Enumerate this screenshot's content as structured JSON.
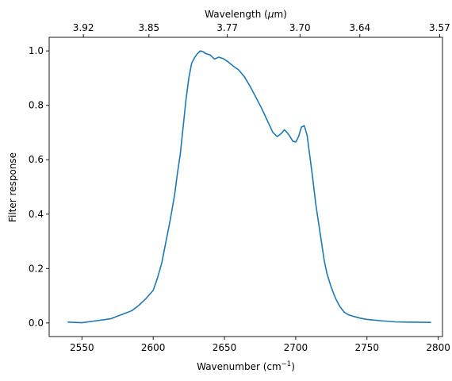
{
  "chart_data": {
    "type": "line",
    "xlabel": "Wavenumber (cm",
    "xlabel_sup": "−1",
    "xlabel_close": ")",
    "ylabel": "Filter response",
    "top_xlabel": "Wavelength (",
    "top_xlabel_mu": "μ",
    "top_xlabel_rest": "m)",
    "xlim": [
      2527,
      2803
    ],
    "ylim": [
      -0.05,
      1.05
    ],
    "x_ticks": [
      2550,
      2600,
      2650,
      2700,
      2750,
      2800
    ],
    "x_tick_labels": [
      "2550",
      "2600",
      "2650",
      "2700",
      "2750",
      "2800"
    ],
    "y_ticks": [
      0.0,
      0.2,
      0.4,
      0.6,
      0.8,
      1.0
    ],
    "y_tick_labels": [
      "0.0",
      "0.2",
      "0.4",
      "0.6",
      "0.8",
      "1.0"
    ],
    "top_ticks": [
      {
        "wavenumber": 2551,
        "label": "3.92"
      },
      {
        "wavenumber": 2597,
        "label": "3.85"
      },
      {
        "wavenumber": 2652,
        "label": "3.77"
      },
      {
        "wavenumber": 2703,
        "label": "3.70"
      },
      {
        "wavenumber": 2745,
        "label": "3.64"
      },
      {
        "wavenumber": 2801,
        "label": "3.57"
      }
    ],
    "line_color": "#1f77b4",
    "grid": false,
    "series": [
      {
        "x": [
          2540,
          2550,
          2560,
          2570,
          2575,
          2580,
          2585,
          2590,
          2595,
          2600,
          2603,
          2606,
          2609,
          2612,
          2615,
          2617,
          2619,
          2621,
          2623,
          2625,
          2627,
          2629,
          2631,
          2633,
          2635,
          2637,
          2640,
          2643,
          2646,
          2649,
          2652,
          2656,
          2660,
          2664,
          2668,
          2672,
          2676,
          2680,
          2684,
          2687,
          2690,
          2692,
          2694,
          2696,
          2698,
          2700,
          2702,
          2704,
          2706,
          2708,
          2710,
          2712,
          2714,
          2716,
          2718,
          2720,
          2722,
          2725,
          2728,
          2731,
          2734,
          2737,
          2740,
          2745,
          2750,
          2760,
          2770,
          2780,
          2795
        ],
        "y": [
          0.003,
          0.001,
          0.008,
          0.015,
          0.025,
          0.035,
          0.045,
          0.065,
          0.09,
          0.12,
          0.165,
          0.22,
          0.3,
          0.38,
          0.47,
          0.55,
          0.62,
          0.72,
          0.82,
          0.9,
          0.955,
          0.975,
          0.99,
          1.0,
          0.997,
          0.99,
          0.985,
          0.97,
          0.977,
          0.972,
          0.962,
          0.945,
          0.93,
          0.905,
          0.87,
          0.83,
          0.79,
          0.745,
          0.7,
          0.685,
          0.697,
          0.71,
          0.7,
          0.685,
          0.668,
          0.665,
          0.685,
          0.72,
          0.725,
          0.69,
          0.61,
          0.53,
          0.44,
          0.37,
          0.3,
          0.23,
          0.18,
          0.13,
          0.09,
          0.06,
          0.04,
          0.03,
          0.025,
          0.018,
          0.013,
          0.008,
          0.004,
          0.003,
          0.002
        ]
      }
    ]
  }
}
